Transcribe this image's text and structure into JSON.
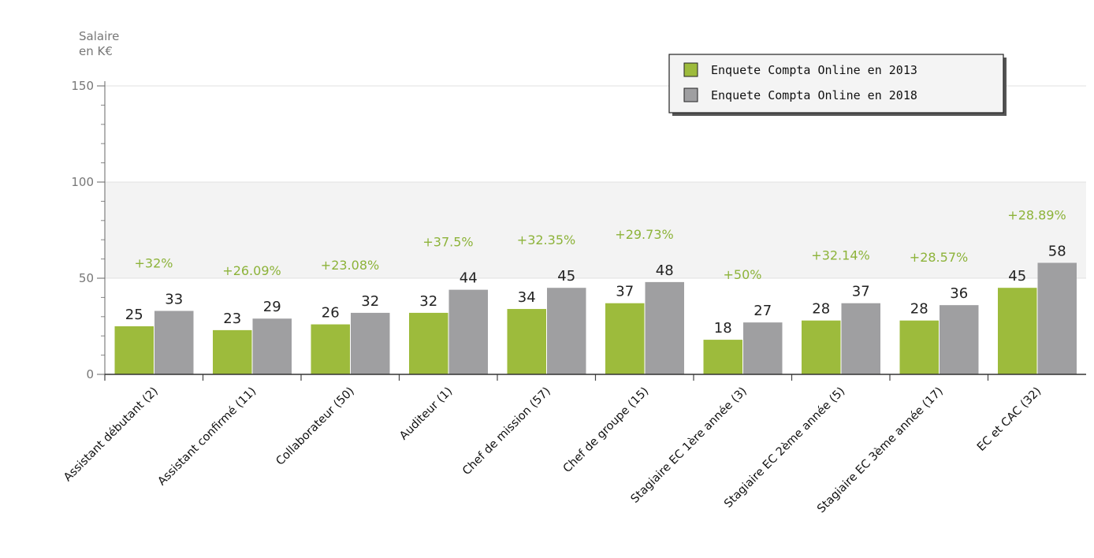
{
  "chart_data": {
    "type": "bar",
    "ylabel": [
      "Salaire",
      "en K€"
    ],
    "ylim": [
      0,
      150
    ],
    "yticks": [
      "0",
      "50",
      "100",
      "150"
    ],
    "grid": true,
    "legend_position": "top-right",
    "categories": [
      "Assistant débutant (2)",
      "Assistant confirmé (11)",
      "Collaborateur (50)",
      "Auditeur (1)",
      "Chef de mission (57)",
      "Chef de groupe (15)",
      "Stagiaire EC 1ère année (3)",
      "Stagiaire EC 2ème année (5)",
      "Stagiaire EC 3ème année (17)",
      "EC et CAC (32)"
    ],
    "series": [
      {
        "name": "Enquete Compta Online en 2013",
        "color": "#9dbb3c",
        "values": [
          25,
          23,
          26,
          32,
          34,
          37,
          18,
          28,
          28,
          45
        ]
      },
      {
        "name": "Enquete Compta Online en 2018",
        "color": "#9f9fa1",
        "values": [
          33,
          29,
          32,
          44,
          45,
          48,
          27,
          37,
          36,
          58
        ]
      }
    ],
    "annotations": [
      "+32%",
      "+26.09%",
      "+23.08%",
      "+37.5%",
      "+32.35%",
      "+29.73%",
      "+50%",
      "+32.14%",
      "+28.57%",
      "+28.89%"
    ]
  }
}
